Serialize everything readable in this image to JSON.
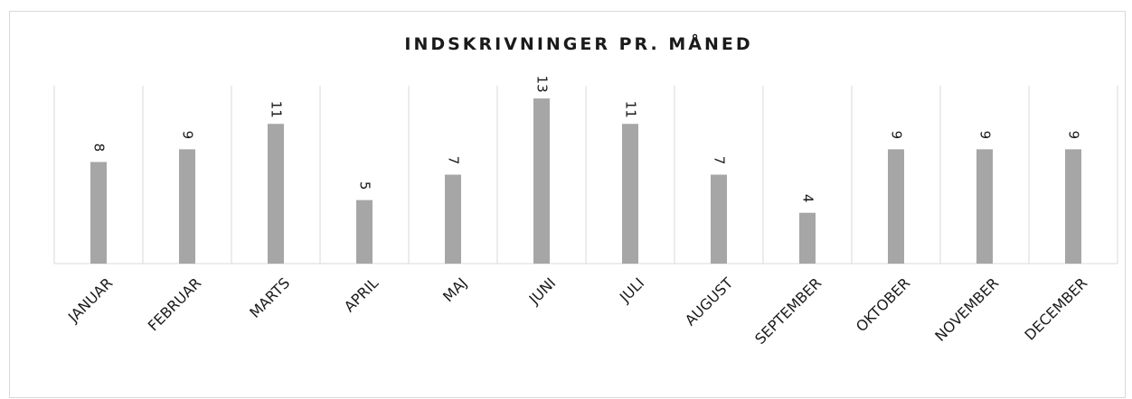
{
  "chart_data": {
    "type": "bar",
    "title": "INDSKRIVNINGER PR. MÅNED",
    "categories": [
      "JANUAR",
      "FEBRUAR",
      "MARTS",
      "APRIL",
      "MAJ",
      "JUNI",
      "JULI",
      "AUGUST",
      "SEPTEMBER",
      "OKTOBER",
      "NOVEMBER",
      "DECEMBER"
    ],
    "values": [
      8,
      9,
      11,
      5,
      7,
      13,
      11,
      7,
      4,
      9,
      9,
      9
    ],
    "color": "#a6a6a6",
    "ylim": [
      0,
      14
    ]
  }
}
